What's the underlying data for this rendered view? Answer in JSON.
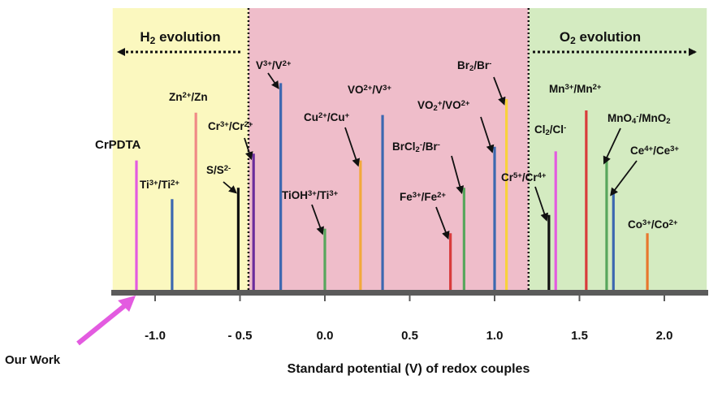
{
  "chart_data": {
    "type": "bar",
    "xlabel": "Standard potential (V) of redox couples",
    "xlim": [
      -1.25,
      2.25
    ],
    "x_ticks": [
      {
        "value": -1.0,
        "label": "-1.0"
      },
      {
        "value": -0.5,
        "label": "- 0.5"
      },
      {
        "value": 0.0,
        "label": "0.0"
      },
      {
        "value": 0.5,
        "label": "0.5"
      },
      {
        "value": 1.0,
        "label": "1.0"
      },
      {
        "value": 1.5,
        "label": "1.5"
      },
      {
        "value": 2.0,
        "label": "2.0"
      }
    ],
    "regions": [
      {
        "name": "H2",
        "label_main": "H",
        "label_sub": "2",
        "label_rest": " evolution",
        "from": -1.25,
        "to": -0.45,
        "color": "#fbf8bf",
        "arrow": "left"
      },
      {
        "name": "middle",
        "from": -0.45,
        "to": 1.2,
        "color": "#efbdca"
      },
      {
        "name": "O2",
        "label_main": "O",
        "label_sub": "2",
        "label_rest": " evolution",
        "from": 1.2,
        "to": 2.25,
        "color": "#d4ebc1",
        "arrow": "right"
      }
    ],
    "boundaries": [
      -0.45,
      1.2
    ],
    "couples": [
      {
        "id": "crpdta",
        "potential": -1.11,
        "height": 0.58,
        "color": "#e35be0",
        "label": [
          [
            "CrPDTA",
            ""
          ]
        ]
      },
      {
        "id": "ti",
        "potential": -0.9,
        "height": 0.41,
        "color": "#3c68b0",
        "label": [
          [
            "Ti",
            ""
          ],
          [
            "3+",
            "sup"
          ],
          [
            "/Ti",
            ""
          ],
          [
            "2+",
            "sup"
          ]
        ]
      },
      {
        "id": "zn",
        "potential": -0.76,
        "height": 0.79,
        "color": "#f08a86",
        "label": [
          [
            "Zn",
            ""
          ],
          [
            "2+",
            "sup"
          ],
          [
            "/Zn",
            ""
          ]
        ]
      },
      {
        "id": "s",
        "potential": -0.51,
        "height": 0.46,
        "color": "#111111",
        "label": [
          [
            "S/S",
            ""
          ],
          [
            "2-",
            "sup"
          ]
        ],
        "leader": true
      },
      {
        "id": "cr",
        "potential": -0.42,
        "height": 0.61,
        "color": "#6b2d9c",
        "label": [
          [
            "Cr",
            ""
          ],
          [
            "3+",
            "sup"
          ],
          [
            "/Cr",
            ""
          ],
          [
            "2+",
            "sup"
          ]
        ],
        "leader": true
      },
      {
        "id": "v",
        "potential": -0.26,
        "height": 0.92,
        "color": "#3c68b0",
        "label": [
          [
            "V",
            ""
          ],
          [
            "3+",
            "sup"
          ],
          [
            "/V",
            ""
          ],
          [
            "2+",
            "sup"
          ]
        ],
        "leader": true
      },
      {
        "id": "tioh",
        "potential": 0.0,
        "height": 0.28,
        "color": "#58a65c",
        "label": [
          [
            "TiOH",
            ""
          ],
          [
            "3+",
            "sup"
          ],
          [
            "/Ti",
            ""
          ],
          [
            "3+",
            "sup"
          ]
        ],
        "leader": true
      },
      {
        "id": "cu",
        "potential": 0.21,
        "height": 0.58,
        "color": "#f2a93b",
        "label": [
          [
            "Cu",
            ""
          ],
          [
            "2+",
            "sup"
          ],
          [
            "/Cu",
            ""
          ],
          [
            "+",
            "sup"
          ]
        ],
        "leader": true
      },
      {
        "id": "vo",
        "potential": 0.34,
        "height": 0.78,
        "color": "#3c68b0",
        "label": [
          [
            "VO",
            ""
          ],
          [
            "2+",
            "sup"
          ],
          [
            "/V",
            ""
          ],
          [
            "3+",
            "sup"
          ]
        ]
      },
      {
        "id": "fe",
        "potential": 0.74,
        "height": 0.26,
        "color": "#d83b3b",
        "label": [
          [
            "Fe",
            ""
          ],
          [
            "3+",
            "sup"
          ],
          [
            "/Fe",
            ""
          ],
          [
            "2+",
            "sup"
          ]
        ],
        "leader": true
      },
      {
        "id": "brcl",
        "potential": 0.82,
        "height": 0.46,
        "color": "#58a65c",
        "label": [
          [
            "BrCl",
            ""
          ],
          [
            "2",
            "sub"
          ],
          [
            "-",
            "sup"
          ],
          [
            "/Br",
            ""
          ],
          [
            "-",
            "sup"
          ]
        ],
        "leader": true
      },
      {
        "id": "vo2",
        "potential": 1.0,
        "height": 0.64,
        "color": "#3c68b0",
        "label": [
          [
            "VO",
            ""
          ],
          [
            "2",
            "sub"
          ],
          [
            "+",
            "sup"
          ],
          [
            "/VO",
            ""
          ],
          [
            "2+",
            "sup"
          ]
        ],
        "leader": true
      },
      {
        "id": "br",
        "potential": 1.07,
        "height": 0.85,
        "color": "#f8d23a",
        "label": [
          [
            "Br",
            ""
          ],
          [
            "2",
            "sub"
          ],
          [
            "/Br",
            ""
          ],
          [
            "-",
            "sup"
          ]
        ],
        "leader": true
      },
      {
        "id": "cr54",
        "potential": 1.32,
        "height": 0.34,
        "color": "#111111",
        "label": [
          [
            "Cr",
            ""
          ],
          [
            "5+",
            "sup"
          ],
          [
            "/Cr",
            ""
          ],
          [
            "4+",
            "sup"
          ]
        ],
        "leader": true
      },
      {
        "id": "cl",
        "potential": 1.36,
        "height": 0.62,
        "color": "#e35be0",
        "label": [
          [
            "Cl",
            ""
          ],
          [
            "2",
            "sub"
          ],
          [
            "/Cl",
            ""
          ],
          [
            "-",
            "sup"
          ]
        ]
      },
      {
        "id": "mn",
        "potential": 1.54,
        "height": 0.8,
        "color": "#d83b3b",
        "label": [
          [
            "Mn",
            ""
          ],
          [
            "3+",
            "sup"
          ],
          [
            "/Mn",
            ""
          ],
          [
            "2+",
            "sup"
          ]
        ]
      },
      {
        "id": "mno4",
        "potential": 1.66,
        "height": 0.59,
        "color": "#58a65c",
        "label": [
          [
            "MnO",
            ""
          ],
          [
            "4",
            "sub"
          ],
          [
            "-",
            "sup"
          ],
          [
            "/MnO",
            ""
          ],
          [
            "2",
            "sub"
          ]
        ],
        "leader": true
      },
      {
        "id": "ce",
        "potential": 1.7,
        "height": 0.45,
        "color": "#3c68b0",
        "label": [
          [
            "Ce",
            ""
          ],
          [
            "4+",
            "sup"
          ],
          [
            "/Ce",
            ""
          ],
          [
            "3+",
            "sup"
          ]
        ],
        "leader": true
      },
      {
        "id": "co",
        "potential": 1.9,
        "height": 0.26,
        "color": "#e8772e",
        "label": [
          [
            "Co",
            ""
          ],
          [
            "3+",
            "sup"
          ],
          [
            "/Co",
            ""
          ],
          [
            "2+",
            "sup"
          ]
        ]
      }
    ],
    "annotation": {
      "text": "Our Work",
      "points_to": -1.1,
      "color": "#e35be0"
    }
  }
}
